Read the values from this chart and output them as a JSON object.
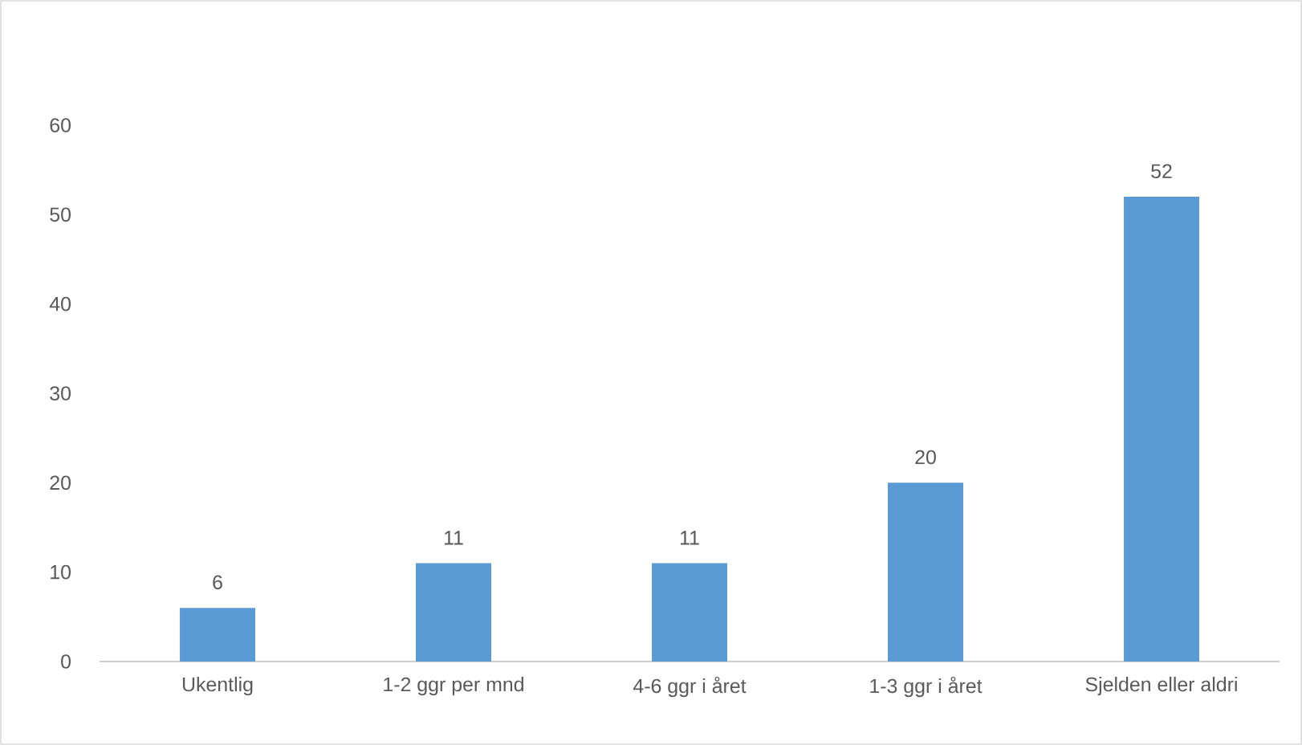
{
  "chart_data": {
    "type": "bar",
    "categories": [
      "Ukentlig",
      "1-2 ggr per mnd",
      "4-6 ggr i året",
      "1-3 ggr i året",
      "Sjelden eller aldri"
    ],
    "values": [
      6,
      11,
      11,
      20,
      52
    ],
    "color": "#5b9bd5",
    "ylim": [
      0,
      60
    ],
    "yticks": [
      0,
      10,
      20,
      30,
      40,
      50,
      60
    ],
    "data_labels": true,
    "grid": false
  }
}
